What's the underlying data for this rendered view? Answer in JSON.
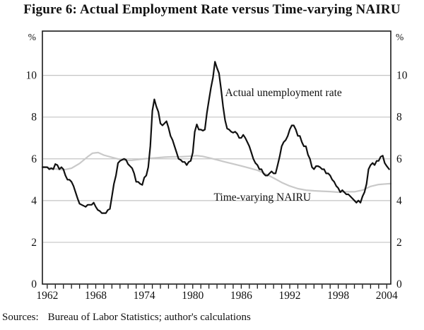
{
  "title": "Figure 6: Actual Employment Rate versus Time-varying NAIRU",
  "source": {
    "label": "Sources:",
    "text": "Bureau of Labor Statistics; author's calculations"
  },
  "chart_data": {
    "type": "line",
    "title": "Figure 6: Actual Employment Rate versus Time-varying NAIRU",
    "xlabel": "",
    "ylabel": "%",
    "unit_symbol": "%",
    "x_range": [
      1961.4,
      2004.5
    ],
    "y_range": [
      0,
      12.12
    ],
    "y_ticks": [
      0,
      2,
      4,
      6,
      8,
      10
    ],
    "x_ticks_labeled": [
      1962,
      1968,
      1974,
      1980,
      1986,
      1992,
      1998,
      2004
    ],
    "x_minor_tick_start": 1962,
    "x_minor_tick_end": 2004,
    "x_minor_tick_step": 1,
    "grid": "horizontal",
    "colors": {
      "axis": "#1a1a1a",
      "grid": "#c4c4c4",
      "actual_line": "#111111",
      "nairu_line": "#c9c9c9",
      "text": "#111111"
    },
    "series": [
      {
        "name": "Time-varying NAIRU",
        "key": "time-varying-nairu",
        "color_key": "nairu_line",
        "stroke_width": 2.2,
        "points": [
          [
            1961.4,
            5.62
          ],
          [
            1962,
            5.6
          ],
          [
            1963,
            5.52
          ],
          [
            1964,
            5.47
          ],
          [
            1965,
            5.55
          ],
          [
            1966,
            5.78
          ],
          [
            1967,
            6.1
          ],
          [
            1967.6,
            6.27
          ],
          [
            1968.3,
            6.3
          ],
          [
            1969,
            6.18
          ],
          [
            1970,
            6.07
          ],
          [
            1971,
            5.97
          ],
          [
            1971.7,
            5.92
          ],
          [
            1972.5,
            5.93
          ],
          [
            1973.5,
            5.98
          ],
          [
            1974.5,
            6.02
          ],
          [
            1975.5,
            6.05
          ],
          [
            1976.5,
            6.08
          ],
          [
            1977.5,
            6.1
          ],
          [
            1978.5,
            6.1
          ],
          [
            1979.5,
            6.12
          ],
          [
            1980.5,
            6.15
          ],
          [
            1981.2,
            6.12
          ],
          [
            1982,
            6.05
          ],
          [
            1983,
            5.95
          ],
          [
            1984,
            5.85
          ],
          [
            1985,
            5.76
          ],
          [
            1986,
            5.66
          ],
          [
            1987,
            5.56
          ],
          [
            1988,
            5.45
          ],
          [
            1989,
            5.28
          ],
          [
            1990,
            5.08
          ],
          [
            1991,
            4.87
          ],
          [
            1992,
            4.7
          ],
          [
            1993,
            4.57
          ],
          [
            1994,
            4.5
          ],
          [
            1995,
            4.47
          ],
          [
            1996,
            4.45
          ],
          [
            1997,
            4.43
          ],
          [
            1998,
            4.4
          ],
          [
            1999,
            4.42
          ],
          [
            2000,
            4.42
          ],
          [
            2001,
            4.5
          ],
          [
            2002,
            4.68
          ],
          [
            2003,
            4.77
          ],
          [
            2004,
            4.8
          ],
          [
            2004.5,
            4.81
          ]
        ]
      },
      {
        "name": "Actual unemployment rate",
        "key": "actual-unemployment-rate",
        "color_key": "actual_line",
        "stroke_width": 2.2,
        "points": [
          [
            1961.4,
            5.6
          ],
          [
            1962,
            5.6
          ],
          [
            1962.25,
            5.5
          ],
          [
            1962.5,
            5.55
          ],
          [
            1962.75,
            5.5
          ],
          [
            1963,
            5.75
          ],
          [
            1963.25,
            5.7
          ],
          [
            1963.5,
            5.5
          ],
          [
            1963.75,
            5.6
          ],
          [
            1964,
            5.5
          ],
          [
            1964.25,
            5.2
          ],
          [
            1964.5,
            5.0
          ],
          [
            1964.75,
            5.0
          ],
          [
            1965,
            4.9
          ],
          [
            1965.25,
            4.7
          ],
          [
            1965.5,
            4.4
          ],
          [
            1965.75,
            4.1
          ],
          [
            1966,
            3.85
          ],
          [
            1966.25,
            3.8
          ],
          [
            1966.5,
            3.75
          ],
          [
            1966.75,
            3.7
          ],
          [
            1967,
            3.8
          ],
          [
            1967.25,
            3.8
          ],
          [
            1967.5,
            3.8
          ],
          [
            1967.75,
            3.9
          ],
          [
            1968,
            3.7
          ],
          [
            1968.25,
            3.55
          ],
          [
            1968.5,
            3.5
          ],
          [
            1968.75,
            3.4
          ],
          [
            1969,
            3.4
          ],
          [
            1969.25,
            3.4
          ],
          [
            1969.5,
            3.55
          ],
          [
            1969.75,
            3.6
          ],
          [
            1970,
            4.2
          ],
          [
            1970.25,
            4.8
          ],
          [
            1970.5,
            5.2
          ],
          [
            1970.75,
            5.8
          ],
          [
            1971,
            5.9
          ],
          [
            1971.25,
            5.95
          ],
          [
            1971.5,
            6.0
          ],
          [
            1971.75,
            5.95
          ],
          [
            1972,
            5.75
          ],
          [
            1972.25,
            5.65
          ],
          [
            1972.5,
            5.55
          ],
          [
            1972.75,
            5.3
          ],
          [
            1973,
            4.9
          ],
          [
            1973.25,
            4.9
          ],
          [
            1973.5,
            4.8
          ],
          [
            1973.75,
            4.75
          ],
          [
            1974,
            5.1
          ],
          [
            1974.25,
            5.2
          ],
          [
            1974.5,
            5.6
          ],
          [
            1974.75,
            6.6
          ],
          [
            1975,
            8.3
          ],
          [
            1975.25,
            8.85
          ],
          [
            1975.5,
            8.5
          ],
          [
            1975.75,
            8.25
          ],
          [
            1976,
            7.7
          ],
          [
            1976.25,
            7.6
          ],
          [
            1976.5,
            7.7
          ],
          [
            1976.75,
            7.8
          ],
          [
            1977,
            7.5
          ],
          [
            1977.25,
            7.1
          ],
          [
            1977.5,
            6.9
          ],
          [
            1977.75,
            6.6
          ],
          [
            1978,
            6.3
          ],
          [
            1978.25,
            6.0
          ],
          [
            1978.5,
            5.95
          ],
          [
            1978.75,
            5.85
          ],
          [
            1979,
            5.85
          ],
          [
            1979.25,
            5.7
          ],
          [
            1979.5,
            5.85
          ],
          [
            1979.75,
            5.9
          ],
          [
            1980,
            6.3
          ],
          [
            1980.25,
            7.3
          ],
          [
            1980.5,
            7.65
          ],
          [
            1980.75,
            7.4
          ],
          [
            1981,
            7.4
          ],
          [
            1981.25,
            7.35
          ],
          [
            1981.5,
            7.4
          ],
          [
            1981.75,
            8.2
          ],
          [
            1982,
            8.8
          ],
          [
            1982.25,
            9.4
          ],
          [
            1982.5,
            9.9
          ],
          [
            1982.75,
            10.65
          ],
          [
            1983,
            10.35
          ],
          [
            1983.25,
            10.1
          ],
          [
            1983.5,
            9.35
          ],
          [
            1983.75,
            8.5
          ],
          [
            1984,
            7.85
          ],
          [
            1984.25,
            7.45
          ],
          [
            1984.5,
            7.4
          ],
          [
            1984.75,
            7.3
          ],
          [
            1985,
            7.25
          ],
          [
            1985.25,
            7.3
          ],
          [
            1985.5,
            7.2
          ],
          [
            1985.75,
            7.0
          ],
          [
            1986,
            7.0
          ],
          [
            1986.25,
            7.15
          ],
          [
            1986.5,
            7.0
          ],
          [
            1986.75,
            6.8
          ],
          [
            1987,
            6.6
          ],
          [
            1987.25,
            6.3
          ],
          [
            1987.5,
            6.0
          ],
          [
            1987.75,
            5.8
          ],
          [
            1988,
            5.7
          ],
          [
            1988.25,
            5.5
          ],
          [
            1988.5,
            5.5
          ],
          [
            1988.75,
            5.3
          ],
          [
            1989,
            5.2
          ],
          [
            1989.25,
            5.2
          ],
          [
            1989.5,
            5.3
          ],
          [
            1989.75,
            5.4
          ],
          [
            1990,
            5.3
          ],
          [
            1990.25,
            5.3
          ],
          [
            1990.5,
            5.7
          ],
          [
            1990.75,
            6.1
          ],
          [
            1991,
            6.6
          ],
          [
            1991.25,
            6.8
          ],
          [
            1991.5,
            6.9
          ],
          [
            1991.75,
            7.1
          ],
          [
            1992,
            7.4
          ],
          [
            1992.25,
            7.6
          ],
          [
            1992.5,
            7.6
          ],
          [
            1992.75,
            7.4
          ],
          [
            1993,
            7.1
          ],
          [
            1993.25,
            7.1
          ],
          [
            1993.5,
            6.8
          ],
          [
            1993.75,
            6.6
          ],
          [
            1994,
            6.6
          ],
          [
            1994.25,
            6.2
          ],
          [
            1994.5,
            6.0
          ],
          [
            1994.75,
            5.6
          ],
          [
            1995,
            5.5
          ],
          [
            1995.25,
            5.65
          ],
          [
            1995.5,
            5.65
          ],
          [
            1995.75,
            5.6
          ],
          [
            1996,
            5.5
          ],
          [
            1996.25,
            5.5
          ],
          [
            1996.5,
            5.3
          ],
          [
            1996.75,
            5.3
          ],
          [
            1997,
            5.2
          ],
          [
            1997.25,
            5.0
          ],
          [
            1997.5,
            4.9
          ],
          [
            1997.75,
            4.7
          ],
          [
            1998,
            4.6
          ],
          [
            1998.25,
            4.4
          ],
          [
            1998.5,
            4.5
          ],
          [
            1998.75,
            4.4
          ],
          [
            1999,
            4.3
          ],
          [
            1999.25,
            4.3
          ],
          [
            1999.5,
            4.2
          ],
          [
            1999.75,
            4.1
          ],
          [
            2000,
            4.0
          ],
          [
            2000.25,
            3.9
          ],
          [
            2000.5,
            4.0
          ],
          [
            2000.75,
            3.9
          ],
          [
            2001,
            4.2
          ],
          [
            2001.25,
            4.4
          ],
          [
            2001.5,
            4.8
          ],
          [
            2001.75,
            5.5
          ],
          [
            2002,
            5.7
          ],
          [
            2002.25,
            5.8
          ],
          [
            2002.5,
            5.7
          ],
          [
            2002.75,
            5.9
          ],
          [
            2003,
            5.9
          ],
          [
            2003.25,
            6.1
          ],
          [
            2003.5,
            6.15
          ],
          [
            2003.75,
            5.8
          ],
          [
            2004,
            5.65
          ],
          [
            2004.3,
            5.5
          ]
        ]
      }
    ],
    "annotations": [
      {
        "key": "actual-unemployment-rate",
        "text": "Actual unemployment rate",
        "x": 1984.0,
        "y": 9.0
      },
      {
        "key": "time-varying-nairu",
        "text": "Time-varying NAIRU",
        "x": 1982.6,
        "y": 4.0
      }
    ],
    "legend_position": "inline-annotations"
  }
}
